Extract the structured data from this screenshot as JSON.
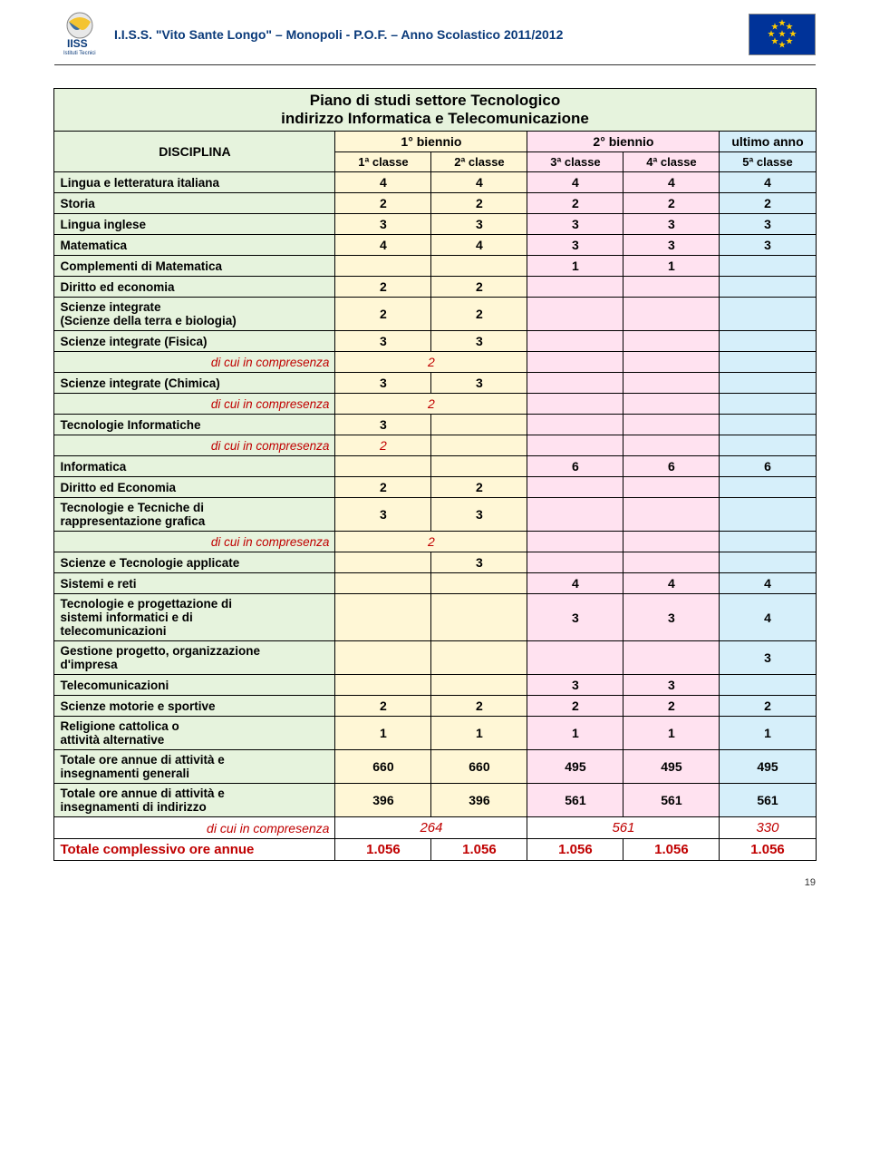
{
  "header": {
    "title": "I.I.S.S. \"Vito Sante Longo\" – Monopoli - P.O.F. – Anno Scolastico 2011/2012",
    "logo_sub": "Istituti Tecnici"
  },
  "table": {
    "title_l1": "Piano di studi settore Tecnologico",
    "title_l2": "indirizzo Informatica e Telecomunicazione",
    "hdr_disc": "DISCIPLINA",
    "hdr_b1": "1° biennio",
    "hdr_b2": "2° biennio",
    "hdr_ua": "ultimo anno",
    "hdr_c1": "1ª classe",
    "hdr_c2": "2ª classe",
    "hdr_c3": "3ª classe",
    "hdr_c4": "4ª classe",
    "hdr_c5": "5ª classe"
  },
  "rows": [
    {
      "label": "Lingua e letteratura italiana",
      "v": [
        "4",
        "4",
        "4",
        "4",
        "4"
      ]
    },
    {
      "label": "Storia",
      "v": [
        "2",
        "2",
        "2",
        "2",
        "2"
      ]
    },
    {
      "label": "Lingua inglese",
      "v": [
        "3",
        "3",
        "3",
        "3",
        "3"
      ]
    },
    {
      "label": "Matematica",
      "v": [
        "4",
        "4",
        "3",
        "3",
        "3"
      ]
    },
    {
      "label": "Complementi di Matematica",
      "v": [
        "",
        "",
        "1",
        "1",
        ""
      ]
    },
    {
      "label": "Diritto ed economia",
      "v": [
        "2",
        "2",
        "",
        "",
        ""
      ]
    },
    {
      "label": "Scienze integrate\n(Scienze della terra e biologia)",
      "v": [
        "2",
        "2",
        "",
        "",
        ""
      ]
    },
    {
      "label": "Scienze integrate (Fisica)",
      "v": [
        "3",
        "3",
        "",
        "",
        ""
      ]
    },
    {
      "label": "di cui in compresenza",
      "type": "comp",
      "span12": "2"
    },
    {
      "label": "Scienze integrate (Chimica)",
      "v": [
        "3",
        "3",
        "",
        "",
        ""
      ]
    },
    {
      "label": "di cui in compresenza",
      "type": "comp",
      "span12": "2"
    },
    {
      "label": "Tecnologie Informatiche",
      "v": [
        "3",
        "",
        "",
        "",
        ""
      ]
    },
    {
      "label": "di cui in compresenza",
      "type": "comp",
      "v": [
        "2",
        "",
        "",
        "",
        ""
      ]
    },
    {
      "label": "Informatica",
      "v": [
        "",
        "",
        "6",
        "6",
        "6"
      ]
    },
    {
      "label": "Diritto ed Economia",
      "v": [
        "2",
        "2",
        "",
        "",
        ""
      ]
    },
    {
      "label": "Tecnologie e Tecniche di\nrappresentazione grafica",
      "v": [
        "3",
        "3",
        "",
        "",
        ""
      ]
    },
    {
      "label": "di cui in compresenza",
      "type": "comp",
      "span12": "2"
    },
    {
      "label": "Scienze e Tecnologie applicate",
      "v": [
        "",
        "3",
        "",
        "",
        ""
      ]
    },
    {
      "label": "Sistemi e reti",
      "v": [
        "",
        "",
        "4",
        "4",
        "4"
      ]
    },
    {
      "label": "Tecnologie e progettazione di\nsistemi informatici e di\ntelecomunicazioni",
      "v": [
        "",
        "",
        "3",
        "3",
        "4"
      ]
    },
    {
      "label": "Gestione  progetto, organizzazione\nd'impresa",
      "v": [
        "",
        "",
        "",
        "",
        "3"
      ]
    },
    {
      "label": "Telecomunicazioni",
      "v": [
        "",
        "",
        "3",
        "3",
        ""
      ]
    },
    {
      "label": "Scienze motorie e  sportive",
      "v": [
        "2",
        "2",
        "2",
        "2",
        "2"
      ]
    },
    {
      "label": "Religione cattolica o\nattività alternative",
      "v": [
        "1",
        "1",
        "1",
        "1",
        "1"
      ]
    },
    {
      "label": "Totale ore annue di attività e\ninsegnamenti generali",
      "v": [
        "660",
        "660",
        "495",
        "495",
        "495"
      ]
    },
    {
      "label": "Totale ore annue di attività e\ninsegnamenti di indirizzo",
      "v": [
        "396",
        "396",
        "561",
        "561",
        "561"
      ]
    }
  ],
  "comp_total": {
    "label": "di cui in compresenza",
    "b1": "264",
    "b2": "561",
    "ua": "330"
  },
  "grand_total": {
    "label": "Totale complessivo ore annue",
    "v": [
      "1.056",
      "1.056",
      "1.056",
      "1.056",
      "1.056"
    ]
  },
  "page_num": "19",
  "colors": {
    "green_bg": "#e6f3dd",
    "yellow_bg": "#fff7d6",
    "pink_bg": "#ffe2f0",
    "blue_bg": "#d6effa",
    "red_text": "#c00000",
    "header_text": "#0a3a7a"
  }
}
